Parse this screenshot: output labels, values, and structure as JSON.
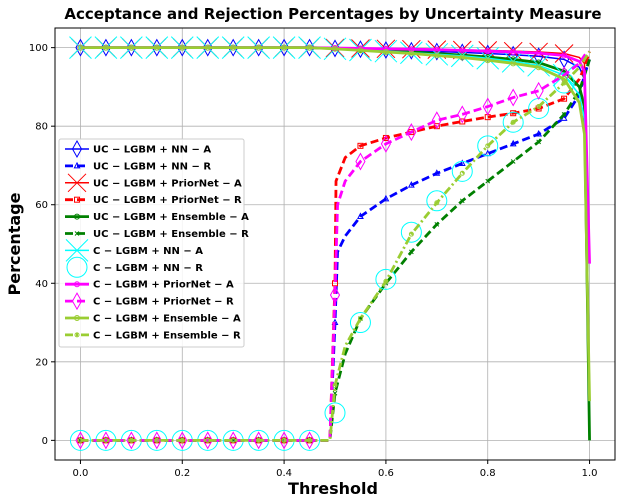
{
  "chart_data": {
    "type": "line",
    "title": "Acceptance and Rejection Percentages by Uncertainty Measure",
    "xlabel": "Threshold",
    "ylabel": "Percentage",
    "xlim": [
      -0.05,
      1.05
    ],
    "ylim": [
      -5,
      105
    ],
    "xticks": [
      0.0,
      0.2,
      0.4,
      0.6,
      0.8,
      1.0
    ],
    "xtick_labels": [
      "0.0",
      "0.2",
      "0.4",
      "0.6",
      "0.8",
      "1.0"
    ],
    "yticks": [
      0,
      20,
      40,
      60,
      80,
      100
    ],
    "ytick_labels": [
      "0",
      "20",
      "40",
      "60",
      "80",
      "100"
    ],
    "grid": true,
    "legend_position": "center-left",
    "series": [
      {
        "name": "UC − LGBM + NN − A",
        "color": "#0000ff",
        "dash": "solid",
        "marker": "thin_diamond",
        "width": 1.5,
        "points": [
          [
            0,
            100
          ],
          [
            0.05,
            100
          ],
          [
            0.1,
            100
          ],
          [
            0.15,
            100
          ],
          [
            0.2,
            100
          ],
          [
            0.25,
            100
          ],
          [
            0.3,
            100
          ],
          [
            0.35,
            100
          ],
          [
            0.4,
            100
          ],
          [
            0.45,
            100
          ],
          [
            0.5,
            99.8
          ],
          [
            0.55,
            99.6
          ],
          [
            0.6,
            99.4
          ],
          [
            0.65,
            99.2
          ],
          [
            0.7,
            99
          ],
          [
            0.75,
            98.8
          ],
          [
            0.8,
            98.5
          ],
          [
            0.85,
            98.2
          ],
          [
            0.9,
            97.8
          ],
          [
            0.95,
            97
          ],
          [
            0.98,
            95
          ],
          [
            0.99,
            92
          ],
          [
            1.0,
            13
          ]
        ]
      },
      {
        "name": "UC − LGBM + NN − R",
        "color": "#0000ff",
        "dash": "dashed",
        "marker": "triangle",
        "width": 2.8,
        "points": [
          [
            0,
            0
          ],
          [
            0.05,
            0
          ],
          [
            0.1,
            0
          ],
          [
            0.15,
            0
          ],
          [
            0.2,
            0
          ],
          [
            0.25,
            0
          ],
          [
            0.3,
            0
          ],
          [
            0.35,
            0
          ],
          [
            0.4,
            0
          ],
          [
            0.45,
            0
          ],
          [
            0.49,
            0
          ],
          [
            0.5,
            30
          ],
          [
            0.505,
            48
          ],
          [
            0.52,
            52
          ],
          [
            0.55,
            57
          ],
          [
            0.6,
            61.5
          ],
          [
            0.65,
            65
          ],
          [
            0.7,
            68
          ],
          [
            0.75,
            70.5
          ],
          [
            0.8,
            73
          ],
          [
            0.85,
            75.5
          ],
          [
            0.9,
            78
          ],
          [
            0.95,
            82
          ],
          [
            0.98,
            88
          ],
          [
            0.99,
            93
          ],
          [
            1.0,
            97
          ]
        ]
      },
      {
        "name": "UC − LGBM + PriorNet − A",
        "color": "#ff0000",
        "dash": "solid",
        "marker": "x",
        "width": 1.5,
        "points": [
          [
            0,
            100
          ],
          [
            0.05,
            100
          ],
          [
            0.1,
            100
          ],
          [
            0.15,
            100
          ],
          [
            0.2,
            100
          ],
          [
            0.25,
            100
          ],
          [
            0.3,
            100
          ],
          [
            0.35,
            100
          ],
          [
            0.4,
            100
          ],
          [
            0.45,
            100
          ],
          [
            0.5,
            99.9
          ],
          [
            0.55,
            99.8
          ],
          [
            0.6,
            99.7
          ],
          [
            0.65,
            99.6
          ],
          [
            0.7,
            99.5
          ],
          [
            0.75,
            99.4
          ],
          [
            0.8,
            99.3
          ],
          [
            0.85,
            99.1
          ],
          [
            0.9,
            98.9
          ],
          [
            0.95,
            98.5
          ],
          [
            0.98,
            97.5
          ],
          [
            0.99,
            96
          ],
          [
            1.0,
            47
          ]
        ]
      },
      {
        "name": "UC − LGBM + PriorNet − R",
        "color": "#ff0000",
        "dash": "dashed",
        "marker": "square",
        "width": 2.8,
        "points": [
          [
            0,
            0
          ],
          [
            0.05,
            0
          ],
          [
            0.1,
            0
          ],
          [
            0.15,
            0
          ],
          [
            0.2,
            0
          ],
          [
            0.25,
            0
          ],
          [
            0.3,
            0
          ],
          [
            0.35,
            0
          ],
          [
            0.4,
            0
          ],
          [
            0.45,
            0
          ],
          [
            0.49,
            0
          ],
          [
            0.5,
            40
          ],
          [
            0.502,
            66
          ],
          [
            0.52,
            72
          ],
          [
            0.55,
            75
          ],
          [
            0.6,
            77
          ],
          [
            0.65,
            78.5
          ],
          [
            0.7,
            80
          ],
          [
            0.75,
            81.2
          ],
          [
            0.8,
            82.3
          ],
          [
            0.85,
            83.3
          ],
          [
            0.9,
            84.5
          ],
          [
            0.95,
            87
          ],
          [
            0.98,
            92
          ],
          [
            0.99,
            95
          ],
          [
            1.0,
            99
          ]
        ]
      },
      {
        "name": "UC − LGBM + Ensemble − A",
        "color": "#008000",
        "dash": "solid",
        "marker": "circle",
        "width": 2.8,
        "points": [
          [
            0,
            100
          ],
          [
            0.05,
            100
          ],
          [
            0.1,
            100
          ],
          [
            0.15,
            100
          ],
          [
            0.2,
            100
          ],
          [
            0.25,
            100
          ],
          [
            0.3,
            100
          ],
          [
            0.35,
            100
          ],
          [
            0.4,
            100
          ],
          [
            0.45,
            100
          ],
          [
            0.5,
            99.8
          ],
          [
            0.55,
            99.5
          ],
          [
            0.6,
            99.2
          ],
          [
            0.65,
            98.9
          ],
          [
            0.7,
            98.5
          ],
          [
            0.75,
            98.1
          ],
          [
            0.8,
            97.6
          ],
          [
            0.85,
            97
          ],
          [
            0.9,
            96.2
          ],
          [
            0.95,
            94
          ],
          [
            0.98,
            90
          ],
          [
            0.99,
            85
          ],
          [
            1.0,
            0
          ]
        ]
      },
      {
        "name": "UC − LGBM + Ensemble − R",
        "color": "#008000",
        "dash": "dashed",
        "marker": "x_small",
        "width": 2.8,
        "points": [
          [
            0,
            0
          ],
          [
            0.05,
            0
          ],
          [
            0.1,
            0
          ],
          [
            0.15,
            0
          ],
          [
            0.2,
            0
          ],
          [
            0.25,
            0
          ],
          [
            0.3,
            0
          ],
          [
            0.35,
            0
          ],
          [
            0.4,
            0
          ],
          [
            0.45,
            0
          ],
          [
            0.49,
            0
          ],
          [
            0.5,
            12
          ],
          [
            0.52,
            22
          ],
          [
            0.55,
            31
          ],
          [
            0.6,
            40
          ],
          [
            0.65,
            48
          ],
          [
            0.7,
            55
          ],
          [
            0.75,
            61
          ],
          [
            0.8,
            66
          ],
          [
            0.85,
            71
          ],
          [
            0.9,
            76
          ],
          [
            0.95,
            83
          ],
          [
            0.98,
            89
          ],
          [
            0.99,
            93
          ],
          [
            1.0,
            97
          ]
        ]
      },
      {
        "name": "C − LGBM + NN − A",
        "color": "#00ffff",
        "dash": "solid",
        "marker": "x_big",
        "width": 1.5,
        "points": [
          [
            0,
            100
          ],
          [
            0.05,
            100
          ],
          [
            0.1,
            100
          ],
          [
            0.15,
            100
          ],
          [
            0.2,
            100
          ],
          [
            0.25,
            100
          ],
          [
            0.3,
            100
          ],
          [
            0.35,
            100
          ],
          [
            0.4,
            100
          ],
          [
            0.45,
            100
          ],
          [
            0.5,
            99.7
          ],
          [
            0.55,
            99.4
          ],
          [
            0.6,
            99.1
          ],
          [
            0.65,
            98.7
          ],
          [
            0.7,
            98.3
          ],
          [
            0.75,
            97.9
          ],
          [
            0.8,
            97.3
          ],
          [
            0.85,
            96.5
          ],
          [
            0.9,
            95.5
          ],
          [
            0.95,
            93
          ],
          [
            0.98,
            88
          ],
          [
            0.99,
            82
          ],
          [
            1.0,
            10
          ]
        ]
      },
      {
        "name": "C − LGBM + NN − R",
        "color": "#00ffff",
        "dash": "none",
        "marker": "circle_big",
        "width": 0,
        "points": [
          [
            0,
            0
          ],
          [
            0.05,
            0
          ],
          [
            0.1,
            0
          ],
          [
            0.15,
            0
          ],
          [
            0.2,
            0
          ],
          [
            0.25,
            0
          ],
          [
            0.3,
            0
          ],
          [
            0.35,
            0
          ],
          [
            0.4,
            0
          ],
          [
            0.45,
            0
          ],
          [
            0.5,
            7
          ],
          [
            0.55,
            30
          ],
          [
            0.6,
            41
          ],
          [
            0.65,
            53
          ],
          [
            0.7,
            61
          ],
          [
            0.75,
            68.5
          ],
          [
            0.8,
            75
          ],
          [
            0.85,
            81
          ],
          [
            0.9,
            84.5
          ],
          [
            0.95,
            91
          ]
        ]
      },
      {
        "name": "C − LGBM + PriorNet − A",
        "color": "#ff00ff",
        "dash": "solid",
        "marker": "circle",
        "width": 2.8,
        "points": [
          [
            0,
            100
          ],
          [
            0.05,
            100
          ],
          [
            0.1,
            100
          ],
          [
            0.15,
            100
          ],
          [
            0.2,
            100
          ],
          [
            0.25,
            100
          ],
          [
            0.3,
            100
          ],
          [
            0.35,
            100
          ],
          [
            0.4,
            100
          ],
          [
            0.45,
            100
          ],
          [
            0.5,
            99.9
          ],
          [
            0.55,
            99.8
          ],
          [
            0.6,
            99.7
          ],
          [
            0.65,
            99.6
          ],
          [
            0.7,
            99.5
          ],
          [
            0.75,
            99.3
          ],
          [
            0.8,
            99.1
          ],
          [
            0.85,
            98.9
          ],
          [
            0.9,
            98.6
          ],
          [
            0.95,
            98
          ],
          [
            0.98,
            96.5
          ],
          [
            0.99,
            94
          ],
          [
            1.0,
            45
          ]
        ]
      },
      {
        "name": "C − LGBM + PriorNet − R",
        "color": "#ff00ff",
        "dash": "dashed",
        "marker": "thin_diamond",
        "width": 2.8,
        "points": [
          [
            0,
            0
          ],
          [
            0.05,
            0
          ],
          [
            0.1,
            0
          ],
          [
            0.15,
            0
          ],
          [
            0.2,
            0
          ],
          [
            0.25,
            0
          ],
          [
            0.3,
            0
          ],
          [
            0.35,
            0
          ],
          [
            0.4,
            0
          ],
          [
            0.45,
            0
          ],
          [
            0.49,
            0
          ],
          [
            0.5,
            37
          ],
          [
            0.505,
            60
          ],
          [
            0.52,
            66
          ],
          [
            0.55,
            71
          ],
          [
            0.6,
            75.5
          ],
          [
            0.65,
            78.5
          ],
          [
            0.7,
            81.5
          ],
          [
            0.75,
            83
          ],
          [
            0.8,
            85
          ],
          [
            0.85,
            87.3
          ],
          [
            0.9,
            89
          ],
          [
            0.95,
            93
          ],
          [
            0.98,
            96
          ],
          [
            0.99,
            98
          ],
          [
            1.0,
            99
          ]
        ]
      },
      {
        "name": "C − LGBM + Ensemble − A",
        "color": "#9acd32",
        "dash": "solid",
        "marker": "circle",
        "width": 2.8,
        "points": [
          [
            0,
            100
          ],
          [
            0.05,
            100
          ],
          [
            0.1,
            100
          ],
          [
            0.15,
            100
          ],
          [
            0.2,
            100
          ],
          [
            0.25,
            100
          ],
          [
            0.3,
            100
          ],
          [
            0.35,
            100
          ],
          [
            0.4,
            100
          ],
          [
            0.45,
            100
          ],
          [
            0.5,
            99.7
          ],
          [
            0.55,
            99.3
          ],
          [
            0.6,
            98.9
          ],
          [
            0.65,
            98.5
          ],
          [
            0.7,
            98
          ],
          [
            0.75,
            97.5
          ],
          [
            0.8,
            96.8
          ],
          [
            0.85,
            96
          ],
          [
            0.9,
            95
          ],
          [
            0.95,
            92
          ],
          [
            0.98,
            86
          ],
          [
            0.99,
            78
          ],
          [
            1.0,
            10
          ]
        ]
      },
      {
        "name": "C − LGBM + Ensemble − R",
        "color": "#9acd32",
        "dash": "dashdot",
        "marker": "circle_small",
        "width": 2.8,
        "points": [
          [
            0,
            0
          ],
          [
            0.05,
            0
          ],
          [
            0.1,
            0
          ],
          [
            0.15,
            0
          ],
          [
            0.2,
            0
          ],
          [
            0.25,
            0
          ],
          [
            0.3,
            0
          ],
          [
            0.35,
            0
          ],
          [
            0.4,
            0
          ],
          [
            0.45,
            0
          ],
          [
            0.49,
            0
          ],
          [
            0.5,
            14
          ],
          [
            0.52,
            24
          ],
          [
            0.55,
            31
          ],
          [
            0.6,
            40.5
          ],
          [
            0.65,
            52.5
          ],
          [
            0.7,
            60.5
          ],
          [
            0.75,
            68
          ],
          [
            0.8,
            75
          ],
          [
            0.85,
            81
          ],
          [
            0.9,
            85
          ],
          [
            0.95,
            91
          ],
          [
            0.98,
            95
          ],
          [
            0.99,
            97
          ],
          [
            1.0,
            99
          ]
        ]
      }
    ]
  }
}
